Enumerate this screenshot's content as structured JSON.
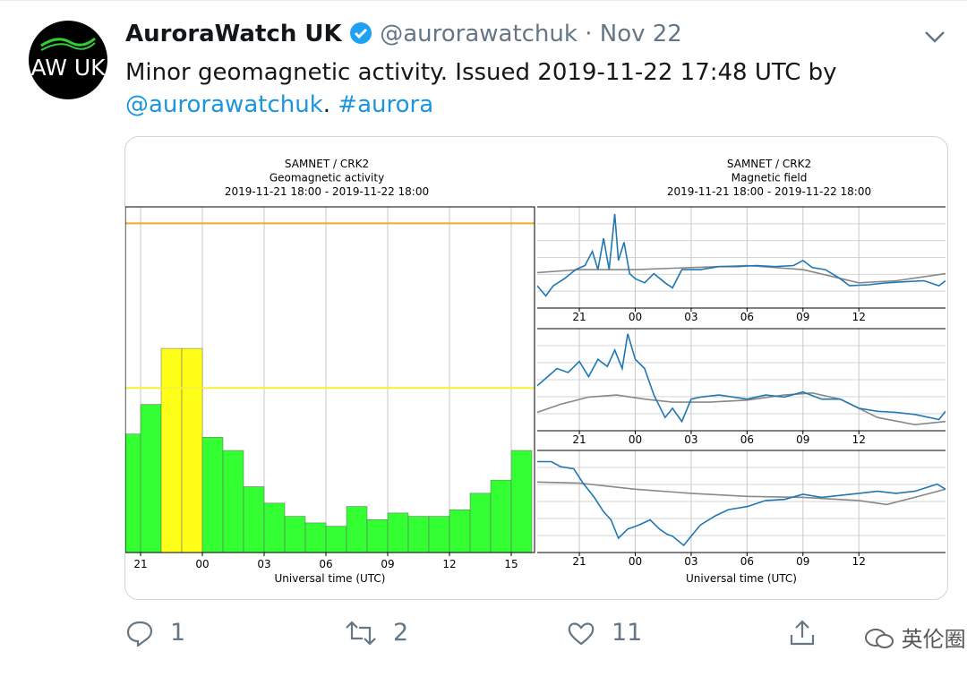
{
  "tweet": {
    "avatar_text": "AW UK",
    "name": "AuroraWatch UK",
    "handle": "@aurorawatchuk",
    "separator": "·",
    "date": "Nov 22",
    "text": "Minor geomagnetic activity. Issued 2019-11-22 17:48 UTC by",
    "mention": "@aurorawatchuk",
    "text_end": ".",
    "hashtag": "#aurora",
    "replies": 1,
    "retweets": 2,
    "likes": 11,
    "watermark": "英伦圈"
  },
  "chart_data": [
    {
      "type": "histogram",
      "title": [
        "SAMNET / CRK2",
        "Geomagnetic activity",
        "2019-11-21 18:00 - 2019-11-22 18:00"
      ],
      "xlabel": "Universal time (UTC)",
      "bins": [
        20,
        21,
        22,
        23,
        24,
        25,
        26,
        27,
        28,
        29,
        30,
        31,
        32,
        33,
        34,
        35,
        36,
        37,
        38,
        39,
        40
      ],
      "values": [
        36,
        45,
        62,
        62,
        35,
        31,
        20,
        15,
        11,
        9,
        8,
        14,
        10,
        12,
        11,
        11,
        13,
        18,
        22,
        31
      ],
      "bar_colors": [
        "#33ff33",
        "#33ff33",
        "#ffff1a",
        "#ffff1a",
        "#33ff33",
        "#33ff33",
        "#33ff33",
        "#33ff33",
        "#33ff33",
        "#33ff33",
        "#33ff33",
        "#33ff33",
        "#33ff33",
        "#33ff33",
        "#33ff33",
        "#33ff33",
        "#33ff33",
        "#33ff33",
        "#33ff33",
        "#33ff33"
      ],
      "thresholds": [
        {
          "value": 50,
          "color": "#f5f03a"
        },
        {
          "value": 100,
          "color": "#f5a623"
        }
      ],
      "xlim": [
        20.26,
        40.13
      ],
      "ylim": [
        0,
        105
      ],
      "xticks": [
        21,
        {
          "value": 24,
          "label": "00"
        },
        {
          "value": 27,
          "label": "03"
        },
        {
          "value": 30,
          "label": "06"
        },
        {
          "value": 33,
          "label": "09"
        },
        {
          "value": 36,
          "label": "12"
        },
        {
          "value": 39,
          "label": "15"
        }
      ],
      "grid": true
    },
    {
      "type": "line",
      "title": [
        "SAMNET / CRK2",
        "Magnetic field",
        "2019-11-21 18:00 - 2019-11-22 18:00"
      ],
      "xlabel": "Universal time (UTC)",
      "xlim": [
        18.74,
        40.65
      ],
      "xticks": [
        21,
        {
          "value": 24,
          "label": "00"
        },
        {
          "value": 27,
          "label": "03"
        },
        {
          "value": 30,
          "label": "06"
        },
        {
          "value": 33,
          "label": "09"
        },
        {
          "value": 36,
          "label": "12"
        }
      ],
      "grid": true,
      "panels": [
        {
          "ylim": [
            0,
            100
          ],
          "series": [
            {
              "color": "#888888",
              "x": [
                18.74,
                21,
                24,
                27,
                30,
                33,
                36,
                38,
                40.65
              ],
              "values": [
                35,
                38,
                38,
                40,
                42,
                38,
                25,
                27,
                34
              ]
            },
            {
              "color": "#1f77b4",
              "x": [
                18.74,
                19.2,
                19.6,
                20.2,
                20.8,
                21.3,
                21.7,
                22.0,
                22.3,
                22.6,
                22.9,
                23.1,
                23.4,
                23.7,
                24.0,
                24.5,
                25.0,
                25.6,
                26.0,
                26.5,
                27.5,
                28.5,
                29.5,
                30.5,
                31.5,
                32.5,
                33.0,
                33.5,
                34.2,
                35.0,
                35.5,
                36.5,
                37.5,
                38.5,
                39.5,
                40.3,
                40.65
              ],
              "values": [
                22,
                12,
                22,
                29,
                38,
                42,
                56,
                38,
                69,
                38,
                93,
                47,
                65,
                34,
                29,
                25,
                34,
                25,
                20,
                38,
                38,
                41,
                41,
                42,
                41,
                42,
                47,
                40,
                38,
                29,
                22,
                23,
                25,
                26,
                27,
                22,
                27
              ]
            }
          ]
        },
        {
          "ylim": [
            0,
            100
          ],
          "series": [
            {
              "color": "#888888",
              "x": [
                18.74,
                20,
                21.5,
                23,
                24.5,
                26,
                28,
                30,
                32,
                33.5,
                35,
                37,
                39,
                40.65
              ],
              "values": [
                18,
                26,
                33,
                35,
                31,
                28,
                28,
                30,
                35,
                37,
                31,
                13,
                6,
                9
              ]
            },
            {
              "color": "#1f77b4",
              "x": [
                18.74,
                19.3,
                19.8,
                20.4,
                21,
                21.5,
                22,
                22.5,
                22.9,
                23.3,
                23.6,
                24.0,
                24.5,
                25,
                25.6,
                26,
                26.5,
                27,
                27.5,
                28.5,
                30,
                31,
                32,
                33,
                34,
                35,
                36,
                37,
                38,
                39,
                40.3,
                40.65
              ],
              "values": [
                44,
                53,
                61,
                57,
                68,
                53,
                70,
                63,
                79,
                61,
                95,
                70,
                61,
                35,
                13,
                22,
                9,
                31,
                33,
                35,
                31,
                35,
                33,
                38,
                31,
                31,
                22,
                19,
                18,
                16,
                11,
                19
              ]
            }
          ]
        },
        {
          "ylim": [
            0,
            100
          ],
          "series": [
            {
              "color": "#888888",
              "x": [
                18.74,
                21,
                24,
                27,
                30,
                33,
                36,
                37.5,
                39,
                40.65
              ],
              "values": [
                69,
                68,
                62,
                58,
                55,
                54,
                51,
                47,
                54,
                62
              ]
            },
            {
              "color": "#1f77b4",
              "x": [
                18.74,
                19.5,
                20,
                20.7,
                21.2,
                21.8,
                22.3,
                22.7,
                23.1,
                23.6,
                24.2,
                24.8,
                25.3,
                25.7,
                26,
                26.6,
                27.0,
                27.5,
                28.3,
                29,
                30,
                31,
                32,
                33,
                34,
                35,
                36,
                37,
                38,
                39,
                40.2,
                40.65
              ],
              "values": [
                89,
                89,
                84,
                82,
                68,
                54,
                40,
                32,
                14,
                23,
                27,
                32,
                23,
                18,
                16,
                7,
                16,
                27,
                36,
                42,
                45,
                51,
                52,
                57,
                54,
                56,
                58,
                60,
                58,
                60,
                67,
                62
              ]
            }
          ]
        }
      ]
    }
  ]
}
